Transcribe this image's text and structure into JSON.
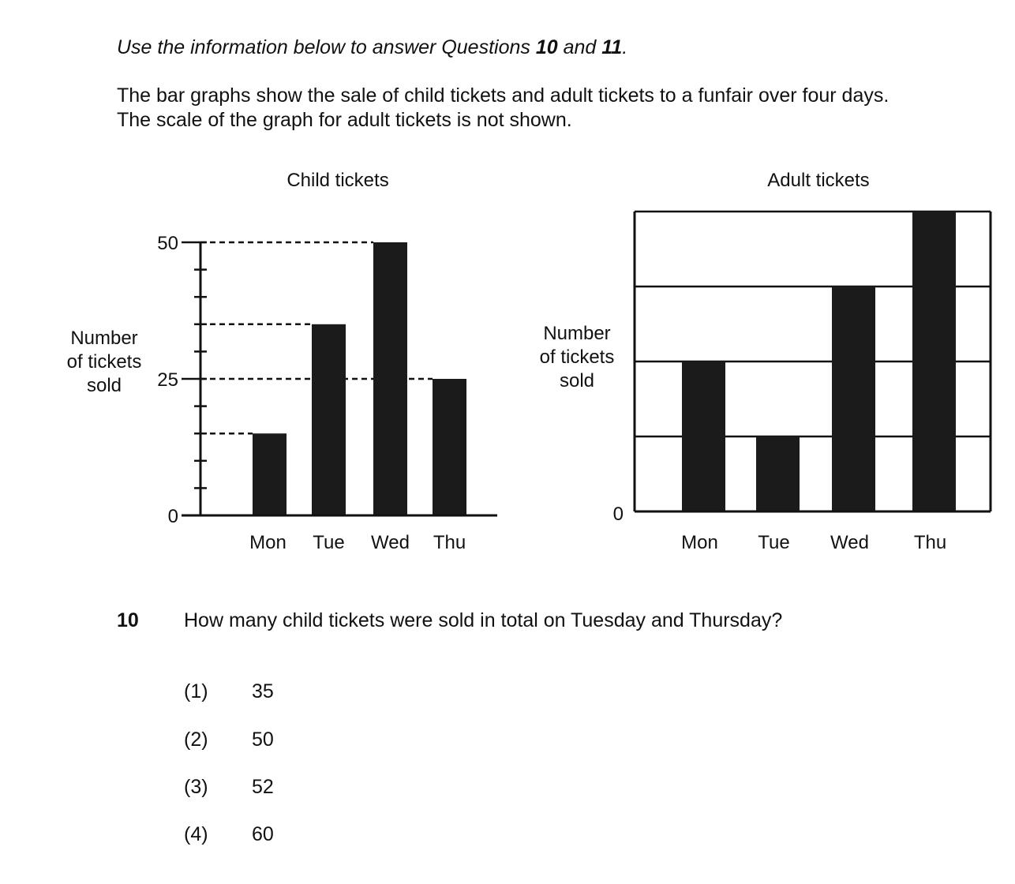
{
  "intro": {
    "prefix": "Use the information below to answer Questions ",
    "q_a": "10",
    "and": " and ",
    "q_b": "11",
    "suffix": "."
  },
  "description": {
    "line1": "The bar graphs show the sale of child tickets and adult tickets to a funfair over four days.",
    "line2": "The scale of the graph for adult tickets is not shown."
  },
  "chart_data": [
    {
      "type": "bar",
      "title": "Child tickets",
      "ylabel": [
        "Number",
        "of tickets",
        "sold"
      ],
      "xlabel": "",
      "categories": [
        "Mon",
        "Tue",
        "Wed",
        "Thu"
      ],
      "values": [
        15,
        35,
        50,
        25
      ],
      "ylim": [
        0,
        50
      ],
      "yticks_labeled": [
        "0",
        "25",
        "50"
      ],
      "minor_tick_step": 5,
      "dashed_reference_lines": true
    },
    {
      "type": "bar",
      "title": "Adult tickets",
      "ylabel": [
        "Number",
        "of tickets",
        "sold"
      ],
      "xlabel": "",
      "categories": [
        "Mon",
        "Tue",
        "Wed",
        "Thu"
      ],
      "values": [
        2,
        1,
        3,
        4
      ],
      "ylim": [
        0,
        4
      ],
      "yticks_labeled": [
        "0"
      ],
      "gridlines": 4,
      "scale_shown": false
    }
  ],
  "question": {
    "number": "10",
    "text": "How many child tickets were sold in total on Tuesday and Thursday?",
    "options": [
      {
        "label": "(1)",
        "value": "35"
      },
      {
        "label": "(2)",
        "value": "50"
      },
      {
        "label": "(3)",
        "value": "52"
      },
      {
        "label": "(4)",
        "value": "60"
      }
    ]
  }
}
